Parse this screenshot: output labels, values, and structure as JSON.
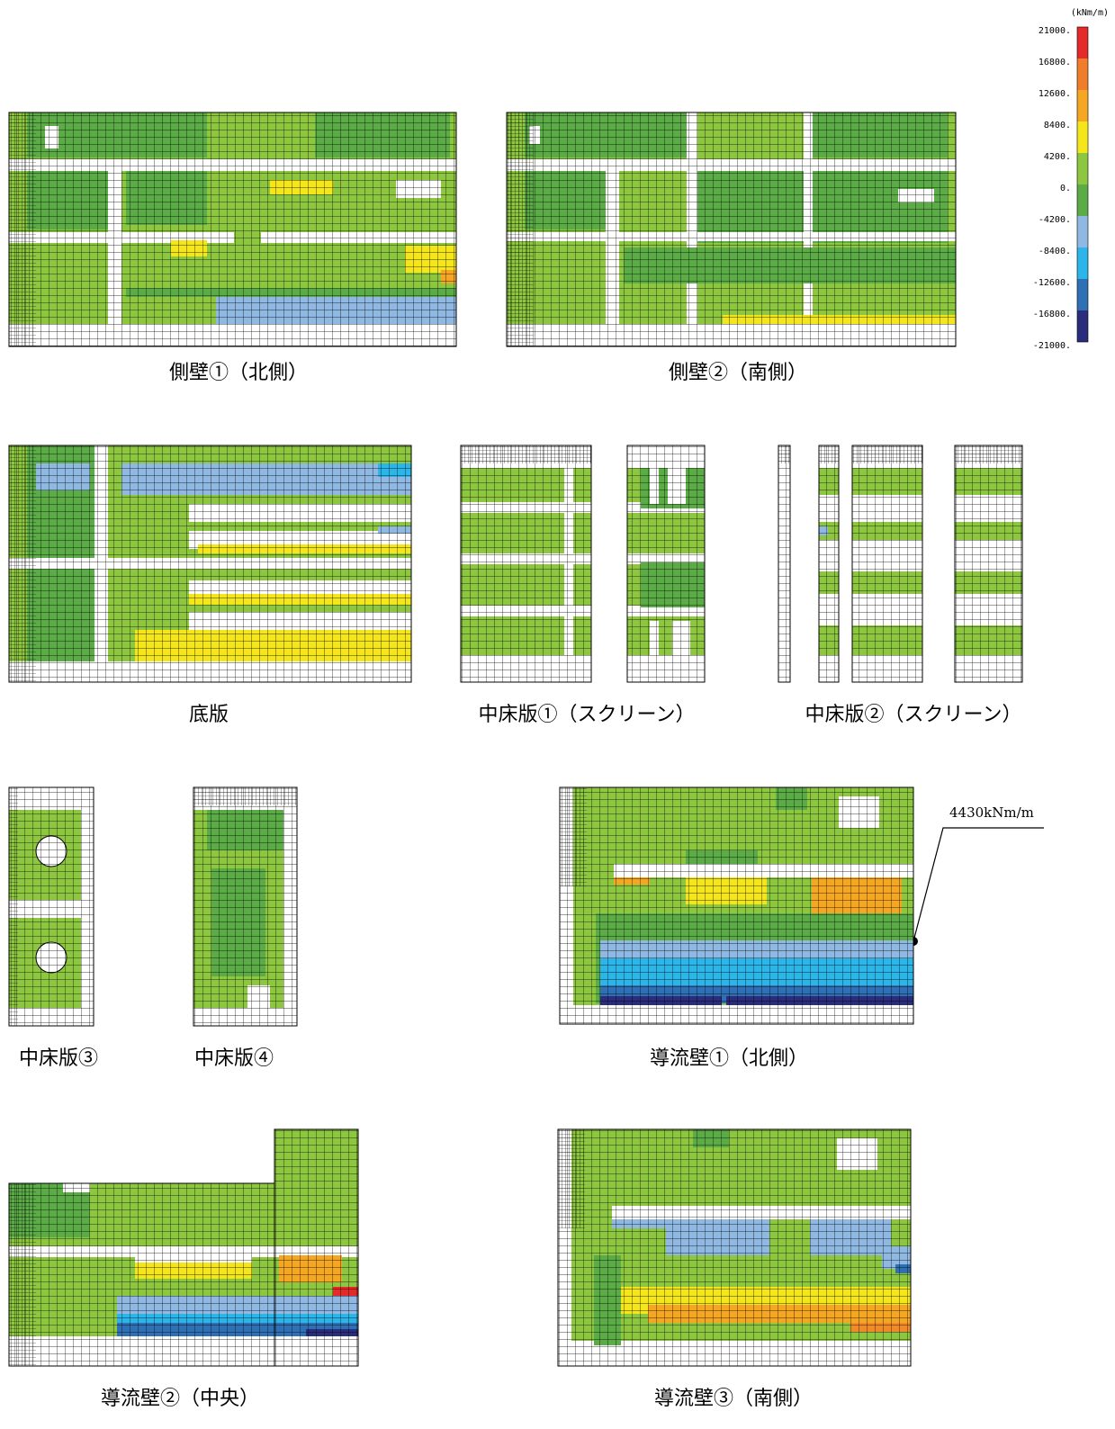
{
  "legend": {
    "unit": "(kNm/m)",
    "labels": [
      "21000.",
      "16800.",
      "12600.",
      "8400.",
      "4200.",
      "0.",
      "-4200.",
      "-8400.",
      "-12600.",
      "-16800.",
      "-21000."
    ],
    "colors": [
      "#e52a2a",
      "#f07d2a",
      "#f5a623",
      "#f4e61b",
      "#8dc63f",
      "#5bab47",
      "#8fb8e2",
      "#2bb5e8",
      "#2f6fb4",
      "#2a2d7c"
    ]
  },
  "panels": [
    {
      "label": "側壁①（北側）"
    },
    {
      "label": "側壁②（南側）"
    },
    {
      "label": "底版"
    },
    {
      "label": "中床版①（スクリーン）"
    },
    {
      "label": "中床版②（スクリーン）"
    },
    {
      "label": "中床版③"
    },
    {
      "label": "中床版④"
    },
    {
      "label": "導流壁①（北側）"
    },
    {
      "label": "導流壁②（中央）"
    },
    {
      "label": "導流壁③（南側）"
    }
  ],
  "annotation": "4430kNm/m"
}
